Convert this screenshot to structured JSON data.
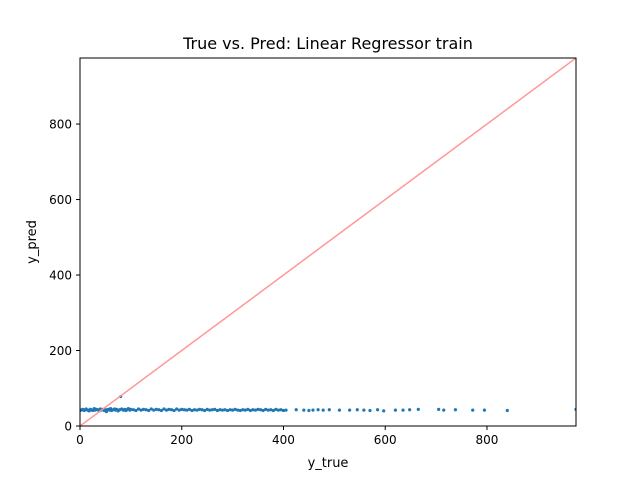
{
  "chart_data": {
    "type": "scatter",
    "title": "True vs. Pred: Linear Regressor train",
    "xlabel": "y_true",
    "ylabel": "y_pred",
    "xlim": [
      0,
      975
    ],
    "ylim": [
      0,
      975
    ],
    "xticks": [
      0,
      200,
      400,
      600,
      800
    ],
    "yticks": [
      0,
      200,
      400,
      600,
      800
    ],
    "xtick_labels": [
      "0",
      "200",
      "400",
      "600",
      "800"
    ],
    "ytick_labels": [
      "0",
      "200",
      "400",
      "600",
      "800"
    ],
    "grid": false,
    "legend": "none",
    "series": [
      {
        "style": "points",
        "color": "#1f77b4",
        "points": [
          [
            2,
            42
          ],
          [
            5,
            44
          ],
          [
            8,
            41
          ],
          [
            10,
            43
          ],
          [
            12,
            45
          ],
          [
            15,
            42
          ],
          [
            18,
            40
          ],
          [
            20,
            44
          ],
          [
            22,
            43
          ],
          [
            25,
            41
          ],
          [
            28,
            46
          ],
          [
            30,
            42
          ],
          [
            32,
            44
          ],
          [
            35,
            43
          ],
          [
            38,
            40
          ],
          [
            40,
            45
          ],
          [
            42,
            42
          ],
          [
            45,
            44
          ],
          [
            48,
            41
          ],
          [
            50,
            43
          ],
          [
            52,
            38
          ],
          [
            55,
            44
          ],
          [
            58,
            42
          ],
          [
            60,
            46
          ],
          [
            62,
            41
          ],
          [
            65,
            43
          ],
          [
            68,
            45
          ],
          [
            70,
            42
          ],
          [
            72,
            44
          ],
          [
            75,
            40
          ],
          [
            78,
            43
          ],
          [
            80,
            78
          ],
          [
            82,
            45
          ],
          [
            85,
            42
          ],
          [
            88,
            44
          ],
          [
            90,
            41
          ],
          [
            92,
            43
          ],
          [
            95,
            46
          ],
          [
            98,
            42
          ],
          [
            100,
            44
          ],
          [
            105,
            43
          ],
          [
            110,
            41
          ],
          [
            115,
            45
          ],
          [
            120,
            42
          ],
          [
            125,
            44
          ],
          [
            130,
            43
          ],
          [
            135,
            41
          ],
          [
            140,
            45
          ],
          [
            145,
            42
          ],
          [
            150,
            44
          ],
          [
            155,
            43
          ],
          [
            160,
            41
          ],
          [
            165,
            45
          ],
          [
            170,
            42
          ],
          [
            175,
            44
          ],
          [
            180,
            43
          ],
          [
            185,
            41
          ],
          [
            190,
            45
          ],
          [
            195,
            42
          ],
          [
            200,
            44
          ],
          [
            205,
            43
          ],
          [
            210,
            42
          ],
          [
            215,
            44
          ],
          [
            220,
            41
          ],
          [
            225,
            43
          ],
          [
            230,
            42
          ],
          [
            235,
            44
          ],
          [
            240,
            43
          ],
          [
            245,
            41
          ],
          [
            250,
            44
          ],
          [
            255,
            42
          ],
          [
            260,
            43
          ],
          [
            265,
            44
          ],
          [
            270,
            41
          ],
          [
            275,
            43
          ],
          [
            280,
            42
          ],
          [
            285,
            43
          ],
          [
            290,
            41
          ],
          [
            295,
            43
          ],
          [
            300,
            42
          ],
          [
            305,
            44
          ],
          [
            310,
            42
          ],
          [
            315,
            41
          ],
          [
            320,
            43
          ],
          [
            325,
            42
          ],
          [
            330,
            44
          ],
          [
            335,
            41
          ],
          [
            340,
            43
          ],
          [
            345,
            42
          ],
          [
            350,
            44
          ],
          [
            355,
            43
          ],
          [
            360,
            41
          ],
          [
            365,
            44
          ],
          [
            370,
            42
          ],
          [
            375,
            43
          ],
          [
            380,
            41
          ],
          [
            385,
            44
          ],
          [
            390,
            42
          ],
          [
            395,
            43
          ],
          [
            400,
            41
          ],
          [
            405,
            42
          ],
          [
            425,
            43
          ],
          [
            440,
            42
          ],
          [
            450,
            41
          ],
          [
            458,
            42
          ],
          [
            468,
            43
          ],
          [
            478,
            42
          ],
          [
            490,
            43
          ],
          [
            510,
            42
          ],
          [
            530,
            42
          ],
          [
            545,
            43
          ],
          [
            558,
            42
          ],
          [
            570,
            41
          ],
          [
            585,
            43
          ],
          [
            597,
            40
          ],
          [
            620,
            42
          ],
          [
            635,
            42
          ],
          [
            648,
            43
          ],
          [
            665,
            44
          ],
          [
            705,
            44
          ],
          [
            715,
            42
          ],
          [
            738,
            43
          ],
          [
            772,
            42
          ],
          [
            795,
            42
          ],
          [
            840,
            41
          ],
          [
            975,
            44
          ]
        ]
      },
      {
        "style": "line",
        "color": "#ff9896",
        "points": [
          [
            0,
            0
          ],
          [
            975,
            975
          ]
        ]
      }
    ]
  }
}
